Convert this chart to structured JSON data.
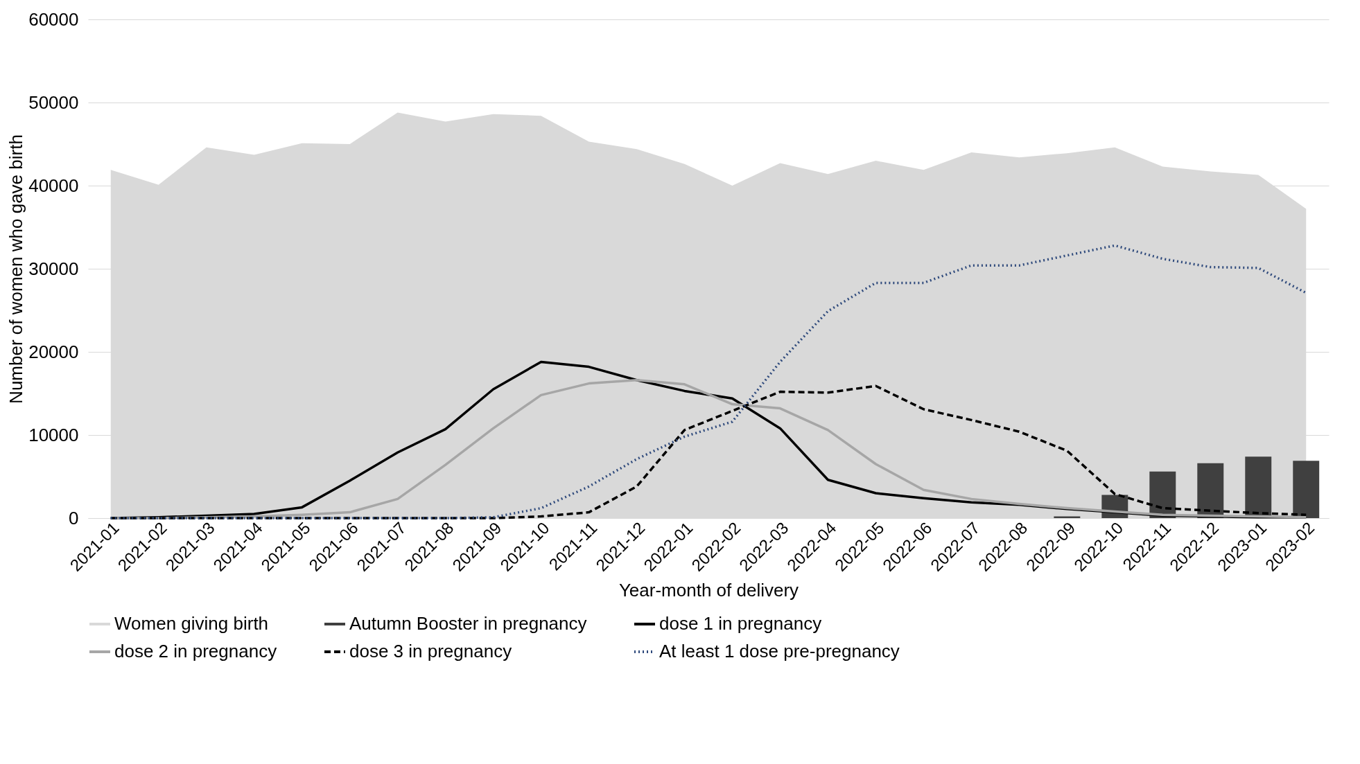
{
  "chart_data": {
    "type": "line",
    "xlabel": "Year-month of delivery",
    "ylabel": "Number of women who gave birth",
    "categories": [
      "2021-01",
      "2021-02",
      "2021-03",
      "2021-04",
      "2021-05",
      "2021-06",
      "2021-07",
      "2021-08",
      "2021-09",
      "2021-10",
      "2021-11",
      "2021-12",
      "2022-01",
      "2022-02",
      "2022-03",
      "2022-04",
      "2022-05",
      "2022-06",
      "2022-07",
      "2022-08",
      "2022-09",
      "2022-10",
      "2022-11",
      "2022-12",
      "2023-01",
      "2023-02"
    ],
    "series": [
      {
        "name": "Women giving birth",
        "type": "area",
        "color": "#d9d9d9",
        "values": [
          41900,
          40100,
          44600,
          43700,
          45100,
          45000,
          48800,
          47700,
          48600,
          48400,
          45300,
          44400,
          42600,
          40000,
          42700,
          41400,
          43000,
          41900,
          44000,
          43400,
          43900,
          44600,
          42300,
          41700,
          41300,
          37200
        ]
      },
      {
        "name": "Autumn Booster in pregnancy",
        "type": "bar",
        "color": "#404040",
        "values": [
          null,
          null,
          null,
          null,
          null,
          null,
          null,
          null,
          null,
          null,
          null,
          null,
          null,
          null,
          null,
          null,
          null,
          null,
          null,
          null,
          200,
          2800,
          5600,
          6600,
          7400,
          6900
        ]
      },
      {
        "name": "dose 1 in pregnancy",
        "color": "#000000",
        "line_style": "solid",
        "values": [
          0,
          100,
          300,
          500,
          1300,
          4500,
          7900,
          10700,
          15500,
          18800,
          18200,
          16600,
          15300,
          14400,
          10800,
          4600,
          3000,
          2400,
          1900,
          1600,
          1100,
          700,
          300,
          200,
          100,
          100
        ]
      },
      {
        "name": "dose 2 in pregnancy",
        "color": "#a6a6a6",
        "line_style": "solid",
        "values": [
          0,
          0,
          100,
          200,
          400,
          700,
          2300,
          6400,
          10800,
          14800,
          16200,
          16600,
          16100,
          13700,
          13200,
          10600,
          6500,
          3400,
          2300,
          1700,
          1200,
          800,
          400,
          300,
          200,
          100
        ]
      },
      {
        "name": "dose 3 in pregnancy",
        "color": "#000000",
        "line_style": "dashed",
        "values": [
          0,
          0,
          0,
          0,
          0,
          0,
          0,
          0,
          0,
          200,
          700,
          3800,
          10600,
          12900,
          15200,
          15100,
          15900,
          13100,
          11800,
          10400,
          8100,
          2900,
          1200,
          900,
          600,
          400
        ]
      },
      {
        "name": "At least 1 dose pre-pregnancy",
        "color": "#2f4a7c",
        "line_style": "dotted",
        "values": [
          0,
          0,
          0,
          0,
          0,
          0,
          0,
          0,
          100,
          1200,
          3800,
          7100,
          9800,
          11600,
          18800,
          24900,
          28300,
          28300,
          30400,
          30400,
          31600,
          32800,
          31200,
          30200,
          30100,
          27100
        ]
      }
    ],
    "ylim": [
      0,
      60000
    ],
    "yticks": [
      0,
      10000,
      20000,
      30000,
      40000,
      50000,
      60000
    ],
    "grid": "y",
    "legend": "bottom"
  }
}
